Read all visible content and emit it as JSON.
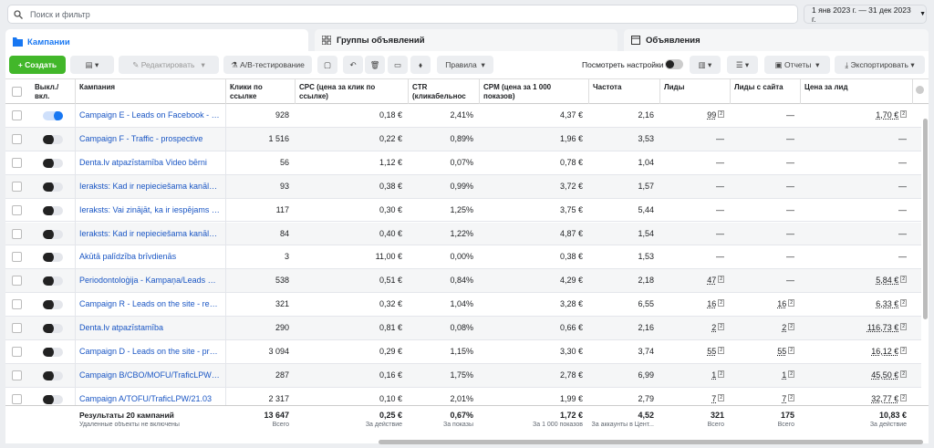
{
  "search": {
    "placeholder": "Поиск и фильтр"
  },
  "date_range": "1 янв 2023 г. — 31 дек 2023 г.",
  "tabs": [
    "Кампании",
    "Группы объявлений",
    "Объявления"
  ],
  "toolbar": {
    "create": "Создать",
    "edit": "Редактировать",
    "ab": "A/B-тестирование",
    "rules": "Правила",
    "view_settings": "Посмотреть настройки",
    "reports": "Отчеты",
    "export": "Экспортировать"
  },
  "table": {
    "columns": [
      "Выкл./вкл.",
      "Кампания",
      "Клики по ссылке",
      "CPC (цена за клик по ссылке)",
      "CTR (кликабельнос",
      "CPM (цена за 1 000 показов)",
      "Частота",
      "Лиды",
      "Лиды с сайта",
      "Цена за лид"
    ],
    "rows": [
      {
        "on": true,
        "name": "Campaign E - Leads on Facebook - prosp...",
        "cells": [
          "928",
          "0,18 €",
          "2,41%",
          "4,37 €",
          "2,16",
          {
            "value": "99",
            "note": "2"
          },
          "—",
          {
            "value": "1,70 €",
            "note": "2"
          }
        ]
      },
      {
        "on": false,
        "name": "Campaign F - Traffic - prospective",
        "cells": [
          "1 516",
          "0,22 €",
          "0,89%",
          "1,96 €",
          "3,53",
          "—",
          "—",
          "—"
        ]
      },
      {
        "on": false,
        "name": "Denta.lv atpazīstamība Video bērni",
        "cells": [
          "56",
          "1,12 €",
          "0,07%",
          "0,78 €",
          "1,04",
          "—",
          "—",
          "—"
        ]
      },
      {
        "on": false,
        "name": "Ieraksts: Kad ir nepieciešama kanālu ārs...",
        "cells": [
          "93",
          "0,38 €",
          "0,99%",
          "3,72 €",
          "1,57",
          "—",
          "—",
          "—"
        ]
      },
      {
        "on": false,
        "name": "Ieraksts: Vai zinājāt, ka ir iespējams sala...",
        "cells": [
          "117",
          "0,30 €",
          "1,25%",
          "3,75 €",
          "5,44",
          "—",
          "—",
          "—"
        ]
      },
      {
        "on": false,
        "name": "Ieraksts: Kad ir nepieciešama kanālu ārs...",
        "cells": [
          "84",
          "0,40 €",
          "1,22%",
          "4,87 €",
          "1,54",
          "—",
          "—",
          "—"
        ]
      },
      {
        "on": false,
        "name": "Akūtā palīdzība brīvdienās",
        "cells": [
          "3",
          "11,00 €",
          "0,00%",
          "0,38 €",
          "1,53",
          "—",
          "—",
          "—"
        ]
      },
      {
        "on": false,
        "name": "Periodontoloģija - Kampaņa/Leads Dent...",
        "cells": [
          "538",
          "0,51 €",
          "0,84%",
          "4,29 €",
          "2,18",
          {
            "value": "47",
            "note": "2"
          },
          "—",
          {
            "value": "5,84 €",
            "note": "2"
          }
        ]
      },
      {
        "on": false,
        "name": "Campaign R - Leads on the site - remark...",
        "cells": [
          "321",
          "0,32 €",
          "1,04%",
          "3,28 €",
          "6,55",
          {
            "value": "16",
            "note": "2"
          },
          {
            "value": "16",
            "note": "2"
          },
          {
            "value": "6,33 €",
            "note": "2"
          }
        ]
      },
      {
        "on": false,
        "name": "Denta.lv atpazīstamība",
        "cells": [
          "290",
          "0,81 €",
          "0,08%",
          "0,66 €",
          "2,16",
          {
            "value": "2",
            "note": "2"
          },
          {
            "value": "2",
            "note": "2"
          },
          {
            "value": "116,73 €",
            "note": "2"
          }
        ]
      },
      {
        "on": false,
        "name": "Campaign D - Leads on the site - prospe...",
        "cells": [
          "3 094",
          "0,29 €",
          "1,15%",
          "3,30 €",
          "3,74",
          {
            "value": "55",
            "note": "2"
          },
          {
            "value": "55",
            "note": "2"
          },
          {
            "value": "16,12 €",
            "note": "2"
          }
        ]
      },
      {
        "on": false,
        "name": "Campaign B/CBO/MOFU/TraficLPW/21...",
        "cells": [
          "287",
          "0,16 €",
          "1,75%",
          "2,78 €",
          "6,99",
          {
            "value": "1",
            "note": "2"
          },
          {
            "value": "1",
            "note": "2"
          },
          {
            "value": "45,50 €",
            "note": "2"
          }
        ]
      },
      {
        "on": false,
        "name": "Campaign A/TOFU/TraficLPW/21.03",
        "cells": [
          "2 317",
          "0,10 €",
          "2,01%",
          "1,99 €",
          "2,79",
          {
            "value": "7",
            "note": "2"
          },
          {
            "value": "7",
            "note": "2"
          },
          {
            "value": "32,77 €",
            "note": "2"
          }
        ]
      }
    ]
  },
  "footer": {
    "label": "Результаты 20 кампаний",
    "sub": "Удаленные объекты не включены",
    "cells": [
      {
        "value": "13 647",
        "caption": "Всего"
      },
      {
        "value": "0,25 €",
        "caption": "За действие"
      },
      {
        "value": "0,67%",
        "caption": "За показы"
      },
      {
        "value": "1,72 €",
        "caption": "За 1 000 показов"
      },
      {
        "value": "4,52",
        "caption": "За аккаунты в Цент..."
      },
      {
        "value": "321",
        "caption": "Всего"
      },
      {
        "value": "175",
        "caption": "Всего"
      },
      {
        "value": "10,83 €",
        "caption": "За действие"
      }
    ]
  }
}
